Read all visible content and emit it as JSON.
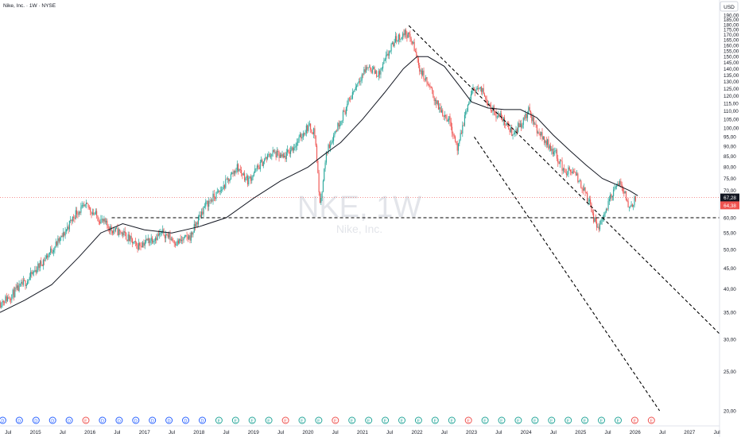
{
  "header": {
    "title": "Nike, Inc. · 1W · NYSE"
  },
  "watermark": {
    "symbol": "NKE, 1W",
    "name": "Nike, Inc."
  },
  "price_axis": {
    "currency": "USD",
    "current_price_label": "67,28",
    "previous_close_label": "64,38"
  },
  "colors": {
    "up": "#26a69a",
    "down": "#ef5350",
    "ma_line": "#131722",
    "trend_line": "#000000",
    "event_dividend": "#2962ff",
    "event_earnings_up": "#26a69a",
    "event_earnings_down": "#ef5350",
    "price_badge": "#131722",
    "prev_badge": "#ef5350"
  },
  "events": {
    "labels": [
      "D",
      "D",
      "D",
      "D",
      "D",
      "E",
      "D",
      "D",
      "D",
      "D",
      "D",
      "D",
      "D",
      "E",
      "E",
      "E",
      "E",
      "E",
      "E",
      "E",
      "E",
      "E",
      "E",
      "E",
      "E",
      "E",
      "E",
      "E",
      "E",
      "E",
      "E",
      "E",
      "E",
      "E",
      "E",
      "E",
      "E",
      "E",
      "E",
      "E"
    ],
    "colors": [
      "d",
      "d",
      "d",
      "d",
      "d",
      "r",
      "d",
      "d",
      "d",
      "d",
      "d",
      "d",
      "d",
      "g",
      "g",
      "g",
      "g",
      "r",
      "g",
      "g",
      "r",
      "g",
      "g",
      "g",
      "g",
      "g",
      "g",
      "g",
      "r",
      "g",
      "g",
      "g",
      "g",
      "g",
      "g",
      "g",
      "g",
      "g",
      "r",
      "r"
    ]
  },
  "chart_data": {
    "type": "candlestick",
    "title": "Nike, Inc. · 1W · NYSE",
    "y_scale": "log",
    "ylim": [
      20,
      195
    ],
    "xlim": [
      2014.35,
      2027.55
    ],
    "grid": false,
    "x_ticks": [
      {
        "label": "Jul",
        "x": 2014.5
      },
      {
        "label": "2015",
        "x": 2015.0
      },
      {
        "label": "Jul",
        "x": 2015.5
      },
      {
        "label": "2016",
        "x": 2016.0
      },
      {
        "label": "Jul",
        "x": 2016.5
      },
      {
        "label": "2017",
        "x": 2017.0
      },
      {
        "label": "Jul",
        "x": 2017.5
      },
      {
        "label": "2018",
        "x": 2018.0
      },
      {
        "label": "Jul",
        "x": 2018.5
      },
      {
        "label": "2019",
        "x": 2019.0
      },
      {
        "label": "Jul",
        "x": 2019.5
      },
      {
        "label": "2020",
        "x": 2020.0
      },
      {
        "label": "Jul",
        "x": 2020.5
      },
      {
        "label": "2021",
        "x": 2021.0
      },
      {
        "label": "Jul",
        "x": 2021.5
      },
      {
        "label": "2022",
        "x": 2022.0
      },
      {
        "label": "Jul",
        "x": 2022.5
      },
      {
        "label": "2023",
        "x": 2023.0
      },
      {
        "label": "Jul",
        "x": 2023.5
      },
      {
        "label": "2024",
        "x": 2024.0
      },
      {
        "label": "Jul",
        "x": 2024.5
      },
      {
        "label": "2025",
        "x": 2025.0
      },
      {
        "label": "Jul",
        "x": 2025.5
      },
      {
        "label": "2026",
        "x": 2026.0
      },
      {
        "label": "Jul",
        "x": 2026.5
      },
      {
        "label": "2027",
        "x": 2027.0
      },
      {
        "label": "Jul",
        "x": 2027.5
      }
    ],
    "y_ticks": [
      "20,00",
      "25,00",
      "30,00",
      "35,00",
      "40,00",
      "45,00",
      "50,00",
      "55,00",
      "60,00",
      "65,00",
      "70,00",
      "75,00",
      "80,00",
      "85,00",
      "90,00",
      "95,00",
      "100,00",
      "105,00",
      "110,00",
      "115,00",
      "120,00",
      "125,00",
      "130,00",
      "135,00",
      "140,00",
      "145,00",
      "150,00",
      "155,00",
      "160,00",
      "165,00",
      "170,00",
      "175,00",
      "180,00",
      "185,00",
      "190,00"
    ],
    "price_path": [
      [
        2014.35,
        37
      ],
      [
        2014.55,
        38.5
      ],
      [
        2014.85,
        42
      ],
      [
        2015.2,
        48
      ],
      [
        2015.5,
        54
      ],
      [
        2015.75,
        62
      ],
      [
        2015.95,
        64
      ],
      [
        2016.15,
        60
      ],
      [
        2016.4,
        56
      ],
      [
        2016.6,
        55
      ],
      [
        2016.85,
        51
      ],
      [
        2017.1,
        53
      ],
      [
        2017.35,
        55
      ],
      [
        2017.6,
        52
      ],
      [
        2017.85,
        54
      ],
      [
        2018.1,
        64
      ],
      [
        2018.4,
        70
      ],
      [
        2018.7,
        80
      ],
      [
        2018.9,
        74
      ],
      [
        2019.15,
        82
      ],
      [
        2019.35,
        87
      ],
      [
        2019.55,
        84
      ],
      [
        2019.8,
        92
      ],
      [
        2020.0,
        101
      ],
      [
        2020.12,
        98
      ],
      [
        2020.22,
        64
      ],
      [
        2020.35,
        88
      ],
      [
        2020.5,
        98
      ],
      [
        2020.7,
        112
      ],
      [
        2020.95,
        133
      ],
      [
        2021.1,
        142
      ],
      [
        2021.3,
        135
      ],
      [
        2021.45,
        150
      ],
      [
        2021.6,
        165
      ],
      [
        2021.8,
        172
      ],
      [
        2021.92,
        162
      ],
      [
        2022.05,
        140
      ],
      [
        2022.2,
        128
      ],
      [
        2022.4,
        112
      ],
      [
        2022.6,
        104
      ],
      [
        2022.75,
        88
      ],
      [
        2022.9,
        110
      ],
      [
        2023.05,
        126
      ],
      [
        2023.2,
        123
      ],
      [
        2023.4,
        110
      ],
      [
        2023.55,
        106
      ],
      [
        2023.75,
        97
      ],
      [
        2023.95,
        104
      ],
      [
        2024.05,
        110
      ],
      [
        2024.2,
        99
      ],
      [
        2024.35,
        93
      ],
      [
        2024.55,
        86
      ],
      [
        2024.7,
        78
      ],
      [
        2024.85,
        78
      ],
      [
        2025.0,
        73
      ],
      [
        2025.15,
        66
      ],
      [
        2025.3,
        56
      ],
      [
        2025.45,
        62
      ],
      [
        2025.6,
        70
      ],
      [
        2025.75,
        73
      ],
      [
        2025.9,
        63
      ],
      [
        2026.0,
        67.28
      ]
    ],
    "moving_average": [
      [
        2014.35,
        35
      ],
      [
        2014.8,
        37.5
      ],
      [
        2015.3,
        41
      ],
      [
        2015.8,
        48
      ],
      [
        2016.2,
        55
      ],
      [
        2016.6,
        58
      ],
      [
        2017.0,
        56
      ],
      [
        2017.5,
        55
      ],
      [
        2018.0,
        57
      ],
      [
        2018.5,
        60
      ],
      [
        2019.0,
        67
      ],
      [
        2019.5,
        74
      ],
      [
        2020.0,
        80
      ],
      [
        2020.3,
        86
      ],
      [
        2020.6,
        92
      ],
      [
        2021.0,
        105
      ],
      [
        2021.4,
        122
      ],
      [
        2021.75,
        140
      ],
      [
        2022.0,
        150
      ],
      [
        2022.2,
        150
      ],
      [
        2022.5,
        142
      ],
      [
        2022.8,
        126
      ],
      [
        2023.0,
        116
      ],
      [
        2023.3,
        112
      ],
      [
        2023.6,
        111
      ],
      [
        2023.9,
        111
      ],
      [
        2024.2,
        106
      ],
      [
        2024.5,
        96
      ],
      [
        2024.8,
        88
      ],
      [
        2025.1,
        81
      ],
      [
        2025.4,
        75
      ],
      [
        2025.7,
        72
      ],
      [
        2025.9,
        70
      ],
      [
        2026.05,
        68
      ]
    ],
    "annotations": {
      "horizontal_support": 60,
      "upper_trendline": [
        [
          2021.85,
          179
        ],
        [
          2027.55,
          31
        ]
      ],
      "lower_trendline": [
        [
          2023.05,
          95
        ],
        [
          2026.45,
          20
        ]
      ]
    },
    "last_price": 67.28,
    "previous_close": 64.38
  }
}
